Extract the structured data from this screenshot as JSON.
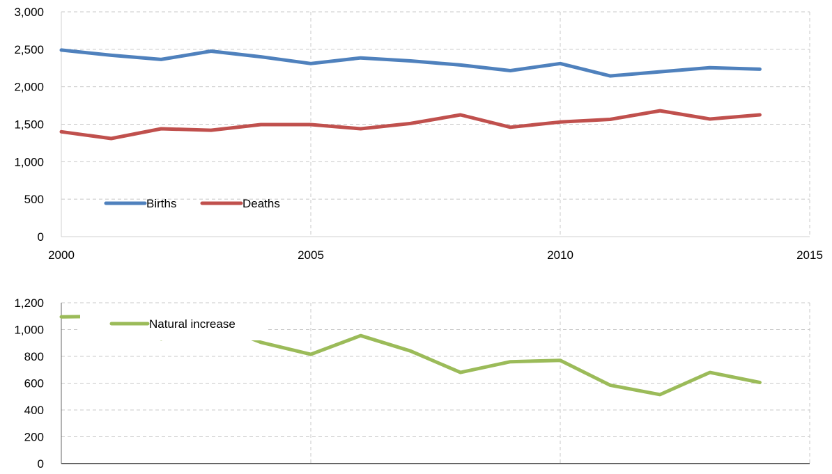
{
  "chart_data": [
    {
      "type": "line",
      "title": "",
      "xlabel": "",
      "ylabel": "",
      "xlim": [
        2000,
        2015
      ],
      "ylim": [
        0,
        3000
      ],
      "x_ticks": [
        "2000",
        "2005",
        "2010",
        "2015"
      ],
      "y_ticks": [
        "0",
        "500",
        "1,000",
        "1,500",
        "2,000",
        "2,500",
        "3,000"
      ],
      "grid": true,
      "legend_placement": "bottom-left",
      "x": [
        2000,
        2001,
        2002,
        2003,
        2004,
        2005,
        2006,
        2007,
        2008,
        2009,
        2010,
        2011,
        2012,
        2013,
        2014
      ],
      "series": [
        {
          "name": "Births",
          "color": "#4f81bd",
          "values": [
            2490,
            2420,
            2365,
            2475,
            2400,
            2310,
            2385,
            2345,
            2290,
            2215,
            2310,
            2145,
            2200,
            2255,
            2235
          ]
        },
        {
          "name": "Deaths",
          "color": "#c0504d",
          "values": [
            1400,
            1310,
            1440,
            1420,
            1495,
            1495,
            1440,
            1510,
            1625,
            1460,
            1530,
            1565,
            1680,
            1570,
            1625
          ]
        }
      ]
    },
    {
      "type": "line",
      "title": "",
      "xlabel": "",
      "ylabel": "",
      "xlim": [
        2000,
        2015
      ],
      "ylim": [
        0,
        1200
      ],
      "y_ticks": [
        "0",
        "200",
        "400",
        "600",
        "800",
        "1,000",
        "1,200"
      ],
      "grid": true,
      "legend_placement": "top-left",
      "x": [
        2000,
        2001,
        2002,
        2003,
        2004,
        2005,
        2006,
        2007,
        2008,
        2009,
        2010,
        2011,
        2012,
        2013,
        2014
      ],
      "series": [
        {
          "name": "Natural increase",
          "color": "#9bbb59",
          "values": [
            1095,
            1100,
            930,
            1050,
            905,
            815,
            955,
            840,
            680,
            760,
            770,
            585,
            515,
            680,
            605
          ]
        }
      ]
    }
  ]
}
